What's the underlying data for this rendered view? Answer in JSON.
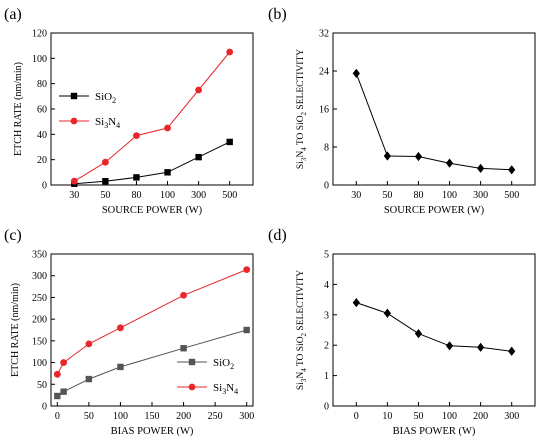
{
  "chart_data": [
    {
      "panel": "(a)",
      "type": "line",
      "categories": [
        "30",
        "50",
        "80",
        "100",
        "300",
        "500"
      ],
      "series": [
        {
          "name": "SiO2",
          "label_main": "SiO",
          "label_sub": "2",
          "label_rest": "",
          "color": "#000000",
          "marker": "square",
          "values": [
            1,
            3,
            6,
            10,
            22,
            34
          ]
        },
        {
          "name": "Si3N4",
          "label_main": "Si",
          "label_sub": "3",
          "label_rest": "N",
          "label_sub2": "4",
          "color": "#e8262b",
          "marker": "circle",
          "values": [
            3,
            18,
            39,
            45,
            75,
            105
          ]
        }
      ],
      "xlabel": "SOURCE POWER (W)",
      "ylabel": "ETCH RATE (nm/min)",
      "ylim": [
        0,
        120
      ],
      "yticks": [
        0,
        20,
        40,
        60,
        80,
        100,
        120
      ],
      "legend": "left"
    },
    {
      "panel": "(b)",
      "type": "line",
      "categories": [
        "30",
        "50",
        "80",
        "100",
        "300",
        "500"
      ],
      "series": [
        {
          "color": "#000000",
          "marker": "diamond",
          "values": [
            23.5,
            6.1,
            6.0,
            4.6,
            3.5,
            3.2
          ]
        }
      ],
      "xlabel": "SOURCE POWER (W)",
      "ylabel": "Si3N4 TO SiO2 SELECTIVITY",
      "ylabel_parts": {
        "a": "Si",
        "a_sub": "3",
        "b": "N",
        "b_sub": "4",
        "c": " TO SiO",
        "c_sub": "2",
        "d": " SELECTIVITY"
      },
      "ylim": [
        0,
        32
      ],
      "yticks": [
        0,
        8,
        16,
        24,
        32
      ]
    },
    {
      "panel": "(c)",
      "type": "line",
      "xlim": [
        -10,
        310
      ],
      "xticks": [
        0,
        50,
        100,
        150,
        200,
        250,
        300
      ],
      "series": [
        {
          "name": "SiO2",
          "label_main": "SiO",
          "label_sub": "2",
          "color": "#555555",
          "marker": "square",
          "points": [
            [
              0,
              23
            ],
            [
              10,
              33
            ],
            [
              50,
              62
            ],
            [
              100,
              90
            ],
            [
              200,
              133
            ],
            [
              300,
              175
            ]
          ]
        },
        {
          "name": "Si3N4",
          "label_main": "Si",
          "label_sub": "3",
          "label_rest": "N",
          "label_sub2": "4",
          "color": "#e8262b",
          "marker": "circle",
          "points": [
            [
              0,
              73
            ],
            [
              10,
              100
            ],
            [
              50,
              143
            ],
            [
              100,
              180
            ],
            [
              200,
              255
            ],
            [
              300,
              314
            ]
          ]
        }
      ],
      "xlabel": "BIAS POWER (W)",
      "ylabel": "ETCH RATE (nm/min)",
      "ylim": [
        0,
        350
      ],
      "yticks": [
        0,
        50,
        100,
        150,
        200,
        250,
        300,
        350
      ],
      "legend": "bottom-right"
    },
    {
      "panel": "(d)",
      "type": "line",
      "categories": [
        "0",
        "10",
        "50",
        "100",
        "200",
        "300"
      ],
      "series": [
        {
          "color": "#000000",
          "marker": "diamond",
          "values": [
            3.4,
            3.05,
            2.38,
            1.98,
            1.93,
            1.8
          ]
        }
      ],
      "xlabel": "BIAS POWER (W)",
      "ylabel": "Si3N4 TO SiO2 SELECTIVITY",
      "ylabel_parts": {
        "a": "Si",
        "a_sub": "3",
        "b": "N",
        "b_sub": "4",
        "c": " TO SiO",
        "c_sub": "2",
        "d": " SELECTIVITY"
      },
      "ylim": [
        0,
        5
      ],
      "yticks": [
        0,
        1,
        2,
        3,
        4,
        5
      ]
    }
  ]
}
